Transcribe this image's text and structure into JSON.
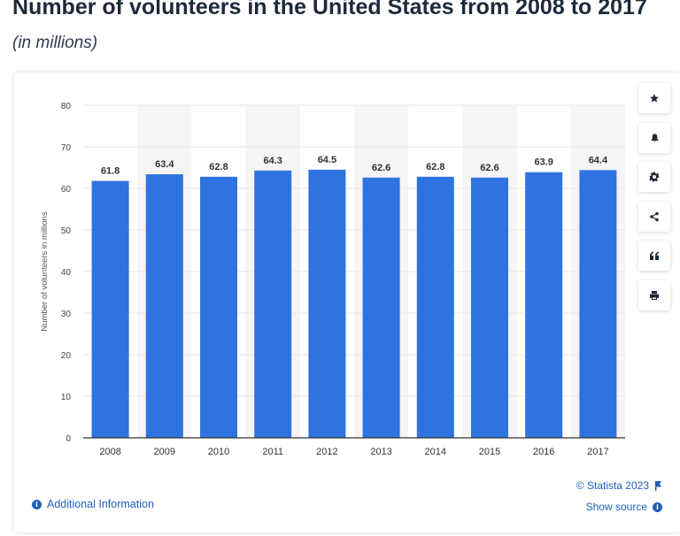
{
  "title": "Number of volunteers in the United States from 2008 to 2017",
  "subtitle": "(in millions)",
  "colors": {
    "bar": "#2f73e0",
    "band": "#f5f5f5",
    "axis": "#333333",
    "grid": "#e6e6e6",
    "link": "#1f5fbf"
  },
  "toolbar": [
    {
      "name": "star-icon"
    },
    {
      "name": "bell-icon"
    },
    {
      "name": "gear-icon"
    },
    {
      "name": "share-icon"
    },
    {
      "name": "quote-icon"
    },
    {
      "name": "print-icon"
    }
  ],
  "footer": {
    "additional_info": "Additional Information",
    "copyright": "© Statista 2023",
    "show_source": "Show source"
  },
  "chart_data": {
    "type": "bar",
    "categories": [
      "2008",
      "2009",
      "2010",
      "2011",
      "2012",
      "2013",
      "2014",
      "2015",
      "2016",
      "2017"
    ],
    "values": [
      61.8,
      63.4,
      62.8,
      64.3,
      64.5,
      62.6,
      62.8,
      62.6,
      63.9,
      64.4
    ],
    "ylabel": "Number of volunteers in millions",
    "ylim": [
      0,
      80
    ],
    "yticks": [
      0,
      10,
      20,
      30,
      40,
      50,
      60,
      70,
      80
    ],
    "grid": true,
    "legend": "none"
  }
}
